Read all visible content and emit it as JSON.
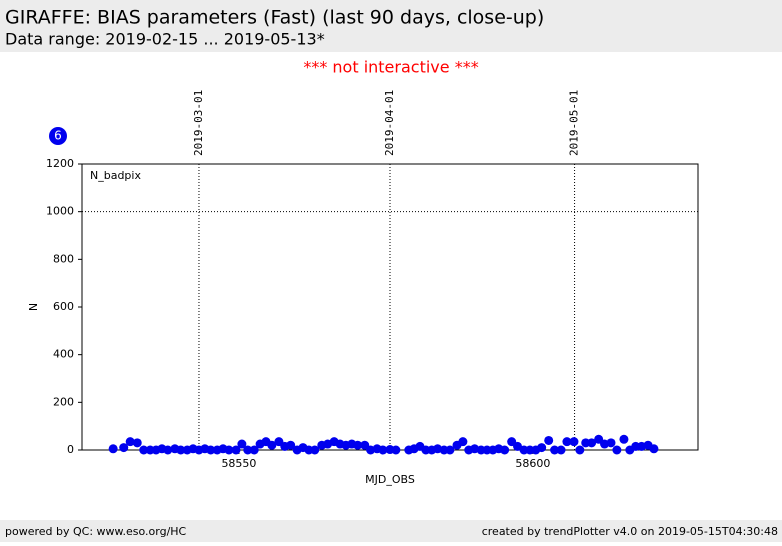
{
  "header": {
    "title": "GIRAFFE: BIAS parameters (Fast) (last 90 days, close-up)",
    "subtitle": "Data range: 2019-02-15 ... 2019-05-13*",
    "notice": "*** not interactive ***"
  },
  "footer": {
    "left": "powered by QC: www.eso.org/HC",
    "right": "created by trendPlotter v4.0 on 2019-05-15T04:30:48"
  },
  "badge": "6",
  "chart_data": {
    "type": "scatter",
    "legend_label": "N_badpix",
    "x_label": "MJD_OBS",
    "y_label": "N",
    "color": "#0000ee",
    "xlim": [
      58523.3,
      58628.1
    ],
    "xticks": [
      58550,
      58600
    ],
    "x2ticks": [
      {
        "value": 58543.2,
        "label": "2019-03-01"
      },
      {
        "value": 58575.7,
        "label": "2019-04-01"
      },
      {
        "value": 58607.1,
        "label": "2019-05-01"
      }
    ],
    "ylim": [
      0,
      1200
    ],
    "yticks": [
      0,
      200,
      400,
      600,
      800,
      1000,
      1200
    ],
    "hlines": [
      1000
    ],
    "x": [
      58528.6,
      58530.4,
      58531.5,
      58532.7,
      58533.8,
      58534.9,
      58535.9,
      58536.9,
      58537.9,
      58539.1,
      58540.1,
      58541.2,
      58542.2,
      58543.2,
      58544.2,
      58545.2,
      58546.3,
      58547.3,
      58548.3,
      58549.5,
      58550.5,
      58551.5,
      58552.6,
      58553.6,
      58554.6,
      58555.6,
      58556.8,
      58557.8,
      58558.8,
      58559.9,
      58560.9,
      58561.9,
      58562.9,
      58564.1,
      58565.1,
      58566.2,
      58567.2,
      58568.2,
      58569.2,
      58570.2,
      58571.4,
      58572.4,
      58573.5,
      58574.5,
      58575.7,
      58576.7,
      58578.9,
      58579.8,
      58580.8,
      58581.8,
      58582.8,
      58583.8,
      58584.9,
      58585.9,
      58587.1,
      58588.1,
      58589.1,
      58590.1,
      58591.2,
      58592.2,
      58593.2,
      58594.2,
      58595.2,
      58596.4,
      58597.4,
      58598.5,
      58599.5,
      58600.5,
      58601.5,
      58602.7,
      58603.7,
      58604.8,
      58605.8,
      58607.0,
      58608.0,
      58609.0,
      58610.0,
      58611.2,
      58612.2,
      58613.3,
      58614.3,
      58615.5,
      58616.5,
      58617.5,
      58618.5,
      58619.6,
      58620.6
    ],
    "values": [
      5,
      10,
      35,
      30,
      0,
      0,
      0,
      5,
      0,
      5,
      0,
      0,
      5,
      0,
      5,
      0,
      0,
      5,
      0,
      0,
      25,
      0,
      0,
      25,
      35,
      20,
      35,
      15,
      20,
      0,
      10,
      0,
      0,
      20,
      25,
      35,
      25,
      20,
      25,
      20,
      20,
      0,
      5,
      0,
      2,
      0,
      0,
      5,
      15,
      0,
      0,
      5,
      0,
      0,
      20,
      35,
      0,
      5,
      0,
      0,
      0,
      5,
      0,
      35,
      15,
      0,
      0,
      0,
      10,
      40,
      0,
      0,
      35,
      35,
      0,
      30,
      30,
      45,
      25,
      30,
      0,
      45,
      0,
      15,
      15,
      20,
      5
    ]
  }
}
